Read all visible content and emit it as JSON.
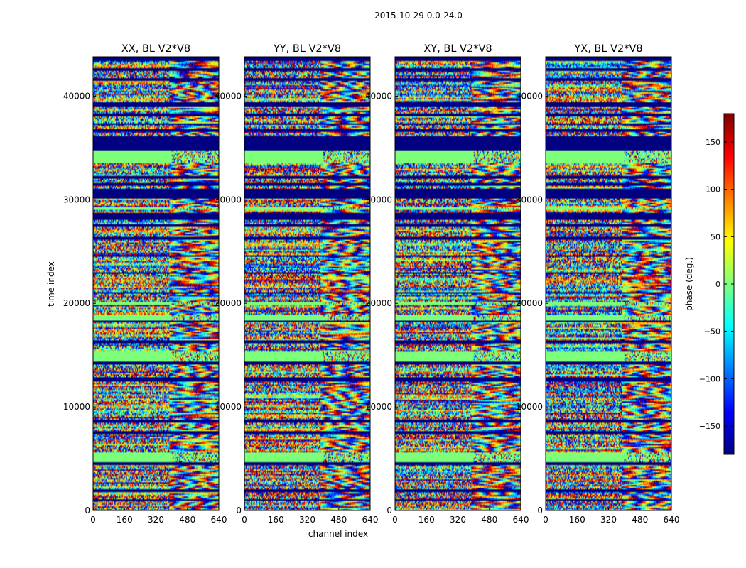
{
  "figure": {
    "suptitle": "2015-10-29 0.0-24.0"
  },
  "chart_data": {
    "type": "heatmap",
    "title": "2015-10-29 0.0-24.0",
    "xlabel": "channel index",
    "ylabel": "time index",
    "xlim": [
      0,
      640
    ],
    "ylim": [
      0,
      43800
    ],
    "xticks": [
      0,
      160,
      320,
      480,
      640
    ],
    "yticks": [
      0,
      10000,
      20000,
      30000,
      40000
    ],
    "panels": [
      {
        "title": "XX, BL V2*V8",
        "seed": 11
      },
      {
        "title": "YY, BL V2*V8",
        "seed": 23
      },
      {
        "title": "XY, BL V2*V8",
        "seed": 37
      },
      {
        "title": "YX, BL V2*V8",
        "seed": 53
      }
    ],
    "masked_time_ranges": [
      [
        43400,
        43800
      ],
      [
        42400,
        42700
      ],
      [
        41500,
        41800
      ],
      [
        39000,
        39400
      ],
      [
        38000,
        38300
      ],
      [
        37200,
        37400
      ],
      [
        36600,
        36800
      ],
      [
        34700,
        36200
      ],
      [
        32000,
        32300
      ],
      [
        31300,
        31600
      ],
      [
        30100,
        31100
      ],
      [
        28000,
        28800
      ],
      [
        27400,
        27600
      ],
      [
        26200,
        26400
      ],
      [
        24500,
        24700
      ],
      [
        22800,
        23000
      ],
      [
        20900,
        21100
      ],
      [
        18200,
        18400
      ],
      [
        16200,
        16400
      ],
      [
        14100,
        14400
      ],
      [
        12500,
        12800
      ],
      [
        8500,
        8800
      ],
      [
        7400,
        7600
      ],
      [
        4400,
        4700
      ],
      [
        1800,
        2000
      ],
      [
        900,
        1100
      ]
    ],
    "flat_time_ranges": [
      [
        33600,
        34700
      ],
      [
        29000,
        29300
      ],
      [
        19800,
        20100
      ],
      [
        18400,
        18900
      ],
      [
        14400,
        15300
      ],
      [
        4700,
        5600
      ]
    ],
    "colorbar": {
      "label": "phase (deg.)",
      "range": [
        -180,
        180
      ],
      "ticks": [
        150,
        100,
        50,
        0,
        -50,
        -100,
        -150
      ],
      "tick_labels": [
        "150",
        "100",
        "50",
        "0",
        "−50",
        "−100",
        "−150"
      ],
      "colormap": "jet"
    },
    "colors": {
      "masked": "#000080",
      "flat": "#7dff7a",
      "jet_stops": [
        "#00007f",
        "#0000ff",
        "#007fff",
        "#00ffff",
        "#7fff7f",
        "#ffff00",
        "#ff7f00",
        "#ff0000",
        "#7f0000"
      ]
    }
  }
}
